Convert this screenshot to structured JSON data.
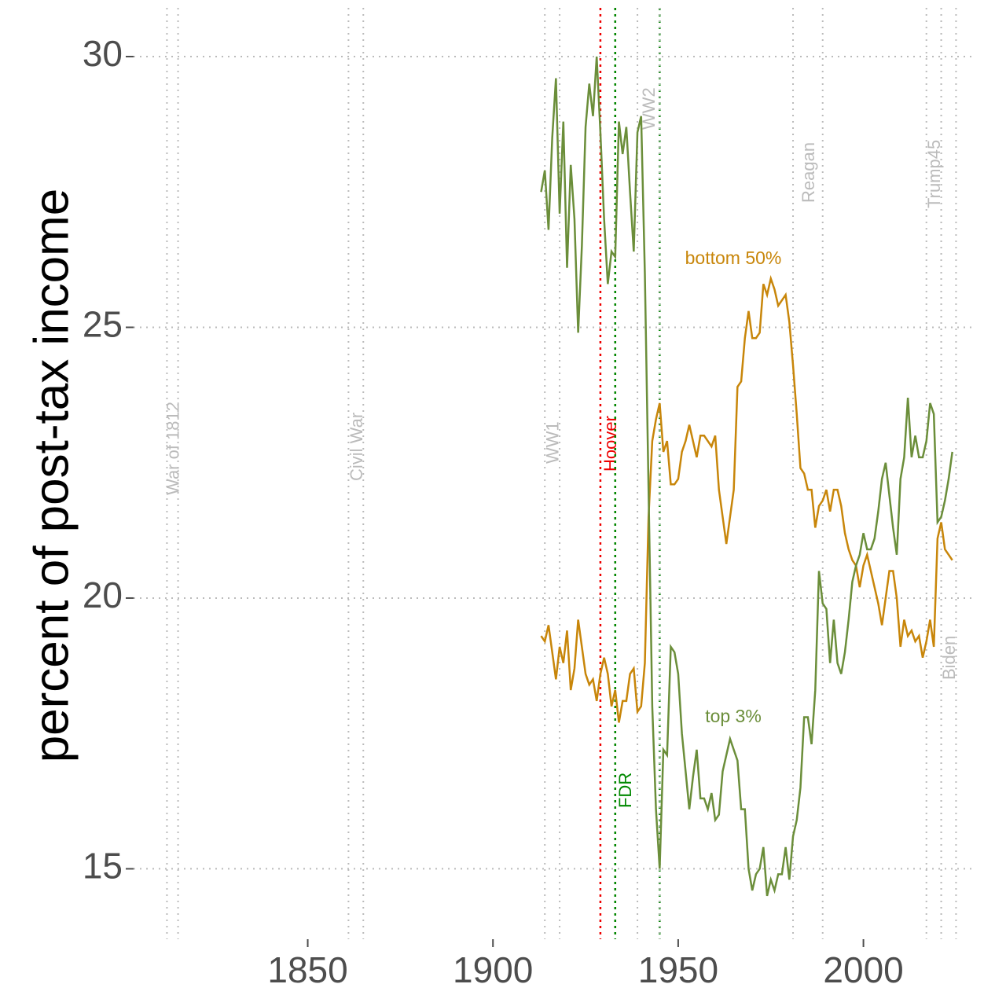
{
  "chart_data": {
    "type": "line",
    "ylabel": "percent of post-tax income",
    "x": [
      1913,
      1914,
      1915,
      1916,
      1917,
      1918,
      1919,
      1920,
      1921,
      1922,
      1923,
      1924,
      1925,
      1926,
      1927,
      1928,
      1929,
      1930,
      1931,
      1932,
      1933,
      1934,
      1935,
      1936,
      1937,
      1938,
      1939,
      1940,
      1941,
      1942,
      1943,
      1944,
      1945,
      1946,
      1947,
      1948,
      1949,
      1950,
      1951,
      1952,
      1953,
      1954,
      1955,
      1956,
      1957,
      1958,
      1959,
      1960,
      1961,
      1962,
      1963,
      1964,
      1965,
      1966,
      1967,
      1968,
      1969,
      1970,
      1971,
      1972,
      1973,
      1974,
      1975,
      1976,
      1977,
      1978,
      1979,
      1980,
      1981,
      1982,
      1983,
      1984,
      1985,
      1986,
      1987,
      1988,
      1989,
      1990,
      1991,
      1992,
      1993,
      1994,
      1995,
      1996,
      1997,
      1998,
      1999,
      2000,
      2001,
      2002,
      2003,
      2004,
      2005,
      2006,
      2007,
      2008,
      2009,
      2010,
      2011,
      2012,
      2013,
      2014,
      2015,
      2016,
      2017,
      2018,
      2019,
      2020,
      2021,
      2022,
      2023,
      2024
    ],
    "series": [
      {
        "name": "bottom 50%",
        "color": "#c8860a",
        "values": [
          19.3,
          19.2,
          19.5,
          19.0,
          18.5,
          19.1,
          18.8,
          19.4,
          18.3,
          18.7,
          19.6,
          19.1,
          18.6,
          18.4,
          18.5,
          18.1,
          18.6,
          18.9,
          18.6,
          18.0,
          18.3,
          17.7,
          18.1,
          18.1,
          18.6,
          18.7,
          17.9,
          18.0,
          18.8,
          21.5,
          22.9,
          23.3,
          23.6,
          22.7,
          22.9,
          22.1,
          22.1,
          22.2,
          22.7,
          22.9,
          23.2,
          22.9,
          22.6,
          23.0,
          23.0,
          22.9,
          22.8,
          23.0,
          22.0,
          21.5,
          21.0,
          21.5,
          22.0,
          23.9,
          24.0,
          24.8,
          25.3,
          24.8,
          24.8,
          24.9,
          25.8,
          25.6,
          25.9,
          25.7,
          25.4,
          25.5,
          25.6,
          25.1,
          24.3,
          23.4,
          22.4,
          22.3,
          22.0,
          22.0,
          21.3,
          21.7,
          21.8,
          22.0,
          21.6,
          22.0,
          22.0,
          21.7,
          21.2,
          20.9,
          20.7,
          20.6,
          20.2,
          20.6,
          20.8,
          20.5,
          20.2,
          19.9,
          19.5,
          20.0,
          20.5,
          20.5,
          20.0,
          19.1,
          19.6,
          19.3,
          19.4,
          19.2,
          19.3,
          18.9,
          19.2,
          19.6,
          19.1,
          21.1,
          21.4,
          20.9,
          20.8,
          20.7
        ]
      },
      {
        "name": "top 3%",
        "color": "#6b8e3a",
        "values": [
          27.5,
          27.9,
          26.8,
          28.5,
          29.6,
          27.1,
          28.8,
          26.1,
          28.0,
          27.0,
          24.9,
          26.5,
          28.7,
          29.5,
          28.9,
          30.0,
          28.6,
          27.0,
          25.8,
          26.4,
          26.3,
          28.8,
          28.2,
          28.7,
          27.5,
          26.4,
          28.6,
          28.9,
          26.0,
          22.0,
          18.0,
          16.1,
          15.0,
          17.2,
          17.1,
          19.1,
          19.0,
          18.6,
          17.5,
          16.8,
          16.1,
          16.7,
          17.2,
          16.3,
          16.3,
          16.1,
          16.4,
          15.9,
          16.0,
          16.8,
          17.1,
          17.4,
          17.2,
          17.0,
          16.1,
          16.1,
          15.0,
          14.6,
          14.9,
          15.0,
          15.4,
          14.5,
          14.8,
          14.6,
          14.9,
          14.9,
          15.4,
          14.8,
          15.6,
          15.9,
          16.5,
          17.8,
          17.8,
          17.3,
          18.3,
          20.5,
          19.9,
          19.8,
          18.8,
          19.6,
          18.8,
          18.6,
          19.0,
          19.6,
          20.3,
          20.6,
          20.8,
          21.2,
          20.9,
          20.9,
          21.1,
          21.6,
          22.2,
          22.5,
          21.9,
          21.3,
          20.8,
          22.2,
          22.6,
          23.7,
          22.6,
          23.0,
          22.6,
          22.6,
          22.9,
          23.6,
          23.4,
          21.4,
          21.5,
          21.8,
          22.2,
          22.7
        ]
      }
    ],
    "events": [
      {
        "label": "War of 1812",
        "color": "#bbbbbb",
        "start": 1812,
        "end": 1815
      },
      {
        "label": "Civil War",
        "color": "#bbbbbb",
        "start": 1861,
        "end": 1865
      },
      {
        "label": "WW1",
        "color": "#bbbbbb",
        "start": 1914,
        "end": 1918
      },
      {
        "label": "Hoover",
        "color": "#ee0000",
        "start": 1929,
        "end": 1933
      },
      {
        "label": "FDR",
        "color": "#008800",
        "start": 1933,
        "end": 1945
      },
      {
        "label": "WW2",
        "color": "#bbbbbb",
        "start": 1939,
        "end": 1945
      },
      {
        "label": "Reagan",
        "color": "#bbbbbb",
        "start": 1981,
        "end": 1989
      },
      {
        "label": "Trump45",
        "color": "#bbbbbb",
        "start": 2017,
        "end": 2021
      },
      {
        "label": "Biden",
        "color": "#bbbbbb",
        "start": 2021,
        "end": 2025
      }
    ],
    "xlim": [
      1803,
      2030
    ],
    "ylim": [
      13.7,
      30.9
    ],
    "xticks": [
      1850,
      1900,
      1950,
      2000
    ],
    "yticks": [
      15,
      20,
      25,
      30
    ],
    "grid": true
  }
}
